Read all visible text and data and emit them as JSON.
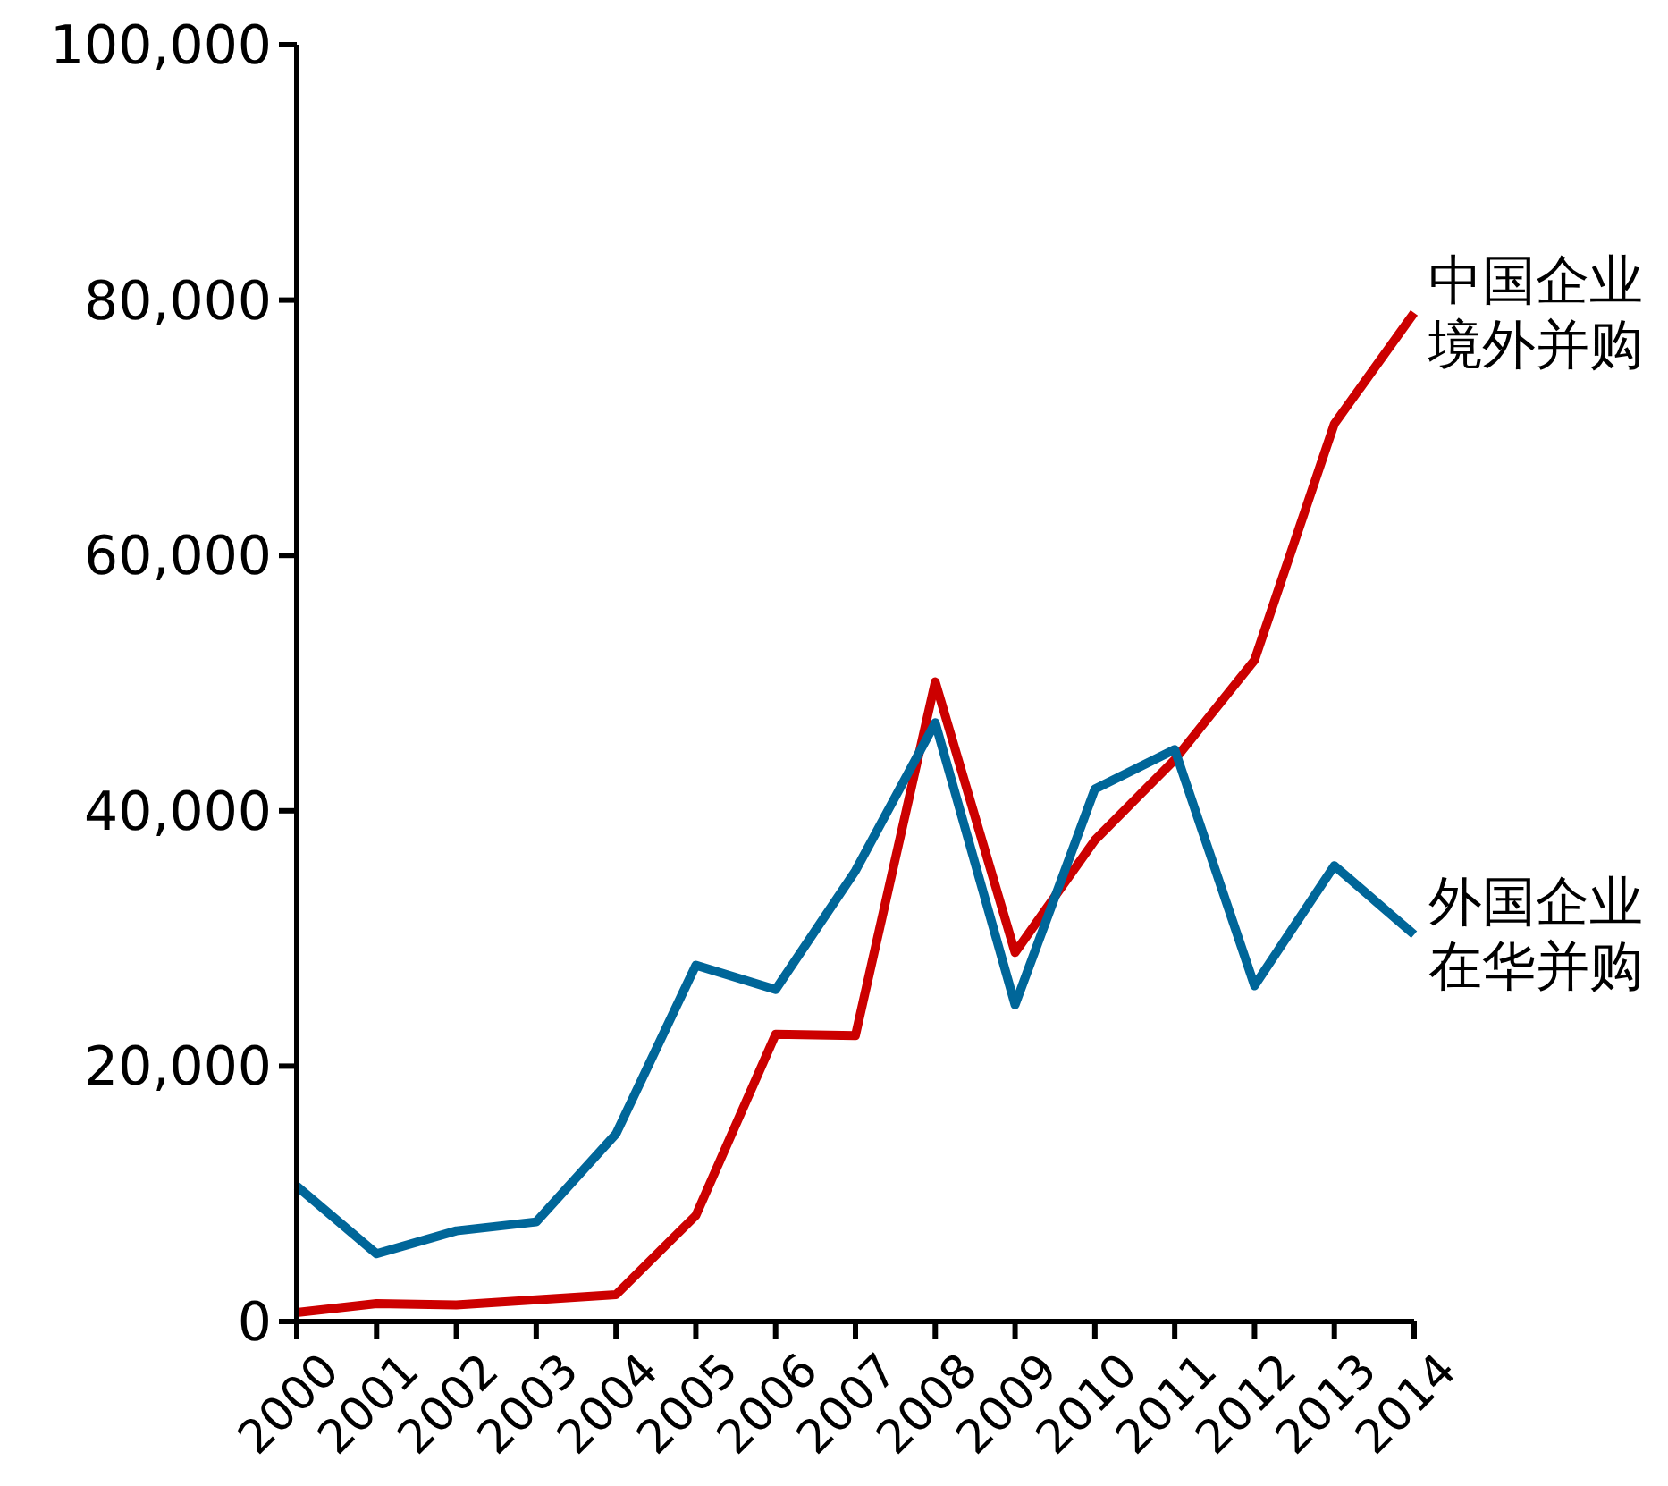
{
  "chart_data": {
    "type": "line",
    "categories": [
      "2000",
      "2001",
      "2002",
      "2003",
      "2004",
      "2005",
      "2006",
      "2007",
      "2008",
      "2009",
      "2010",
      "2011",
      "2012",
      "2013",
      "2014"
    ],
    "series": [
      {
        "name": "中国企业境外并购",
        "color": "#cc0000",
        "values": [
          700,
          1400,
          1300,
          1700,
          2100,
          8300,
          22500,
          22400,
          50100,
          28900,
          37700,
          44000,
          51800,
          70300,
          79000
        ]
      },
      {
        "name": "外国企业在华并购",
        "color": "#006699",
        "values": [
          10600,
          5300,
          7100,
          7800,
          14700,
          27900,
          26000,
          35300,
          46900,
          24800,
          41700,
          44800,
          26300,
          35700,
          30300
        ]
      }
    ],
    "ylim": [
      0,
      100000
    ],
    "yticks": [
      {
        "value": 0,
        "label": "0"
      },
      {
        "value": 20000,
        "label": "20,000"
      },
      {
        "value": 40000,
        "label": "40,000"
      },
      {
        "value": 60000,
        "label": "60,000"
      },
      {
        "value": 80000,
        "label": "80,000"
      },
      {
        "value": 100000,
        "label": "100,000"
      }
    ],
    "grid": false,
    "legend": false,
    "marker": "none",
    "line_style": "solid"
  }
}
